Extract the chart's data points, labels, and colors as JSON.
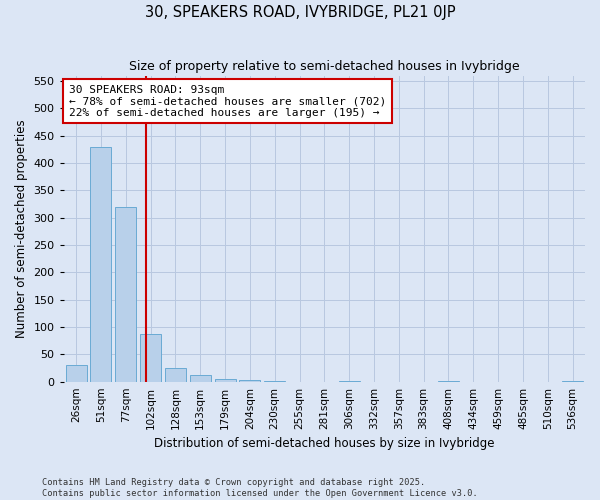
{
  "title": "30, SPEAKERS ROAD, IVYBRIDGE, PL21 0JP",
  "subtitle": "Size of property relative to semi-detached houses in Ivybridge",
  "xlabel": "Distribution of semi-detached houses by size in Ivybridge",
  "ylabel": "Number of semi-detached properties",
  "categories": [
    "26sqm",
    "51sqm",
    "77sqm",
    "102sqm",
    "128sqm",
    "153sqm",
    "179sqm",
    "204sqm",
    "230sqm",
    "255sqm",
    "281sqm",
    "306sqm",
    "332sqm",
    "357sqm",
    "383sqm",
    "408sqm",
    "434sqm",
    "459sqm",
    "485sqm",
    "510sqm",
    "536sqm"
  ],
  "values": [
    30,
    430,
    320,
    88,
    25,
    12,
    5,
    3,
    1,
    0,
    0,
    2,
    0,
    0,
    0,
    2,
    0,
    0,
    0,
    0,
    2
  ],
  "bar_color": "#b8d0ea",
  "bar_edge_color": "#6aaad4",
  "bg_color": "#dce6f5",
  "grid_color": "#b8c8e0",
  "vline_x": 2.82,
  "vline_color": "#cc0000",
  "annotation_text": "30 SPEAKERS ROAD: 93sqm\n← 78% of semi-detached houses are smaller (702)\n22% of semi-detached houses are larger (195) →",
  "annotation_box_color": "#ffffff",
  "annotation_box_edge": "#cc0000",
  "footer1": "Contains HM Land Registry data © Crown copyright and database right 2025.",
  "footer2": "Contains public sector information licensed under the Open Government Licence v3.0.",
  "ylim": [
    0,
    560
  ],
  "yticks": [
    0,
    50,
    100,
    150,
    200,
    250,
    300,
    350,
    400,
    450,
    500,
    550
  ]
}
